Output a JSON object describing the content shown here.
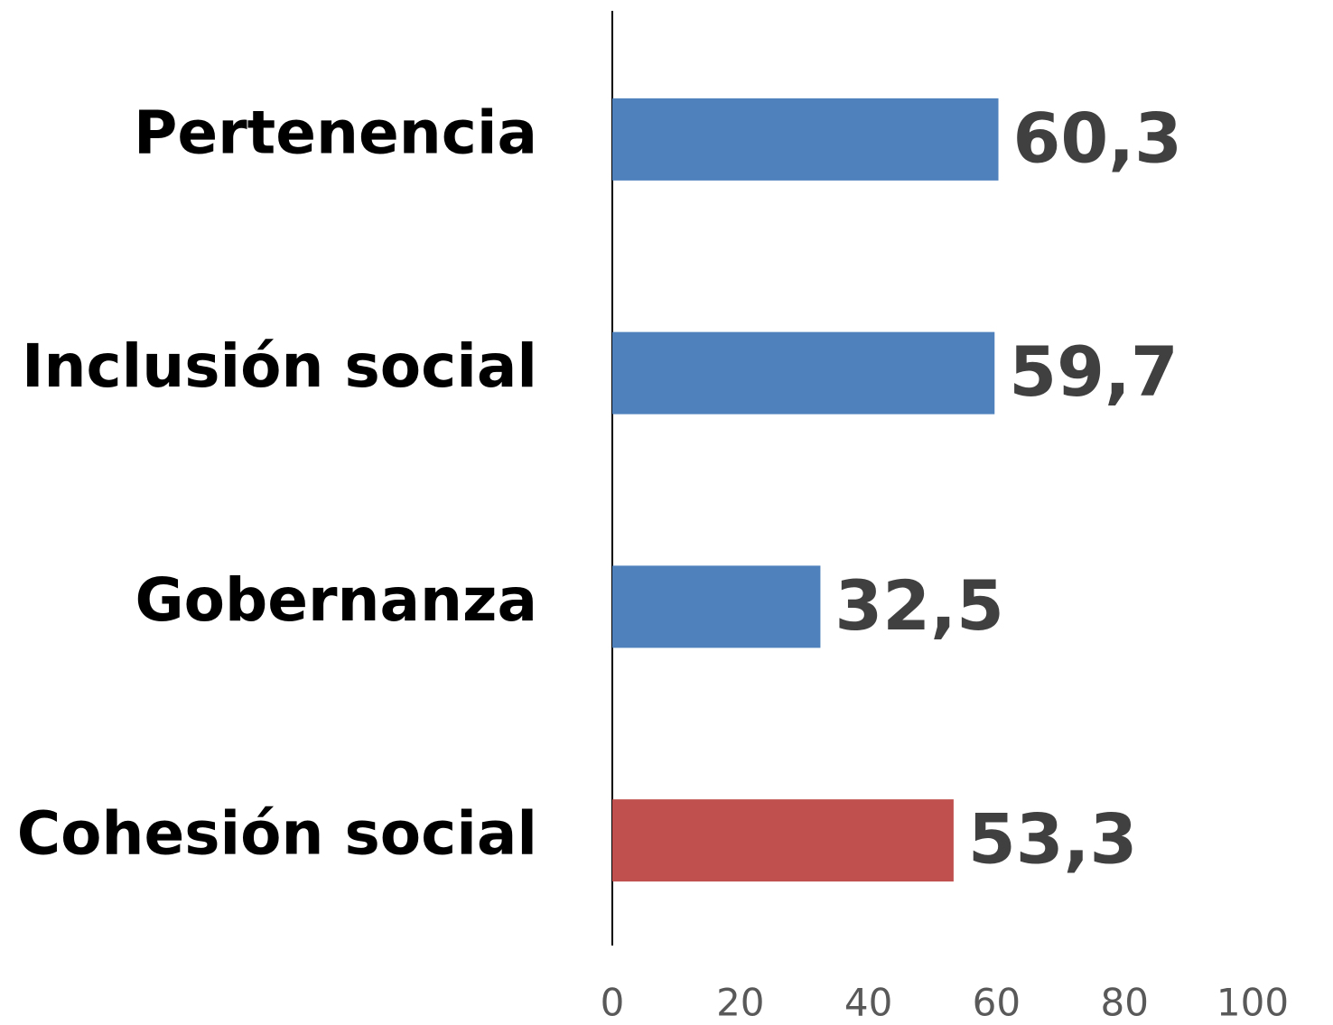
{
  "chart_data": {
    "type": "barh",
    "categories": [
      "Pertenencia",
      "Inclusión social",
      "Gobernanza",
      "Cohesión social"
    ],
    "values": [
      60.3,
      59.7,
      32.5,
      53.3
    ],
    "value_labels": [
      "60,3",
      "59,7",
      "32,5",
      "53,3"
    ],
    "colors": [
      "#4f81bd",
      "#4f81bd",
      "#4f81bd",
      "#c0504d"
    ],
    "xlim": [
      0,
      100
    ],
    "xticks": [
      0,
      20,
      40,
      60,
      80,
      100
    ],
    "grid": false
  }
}
